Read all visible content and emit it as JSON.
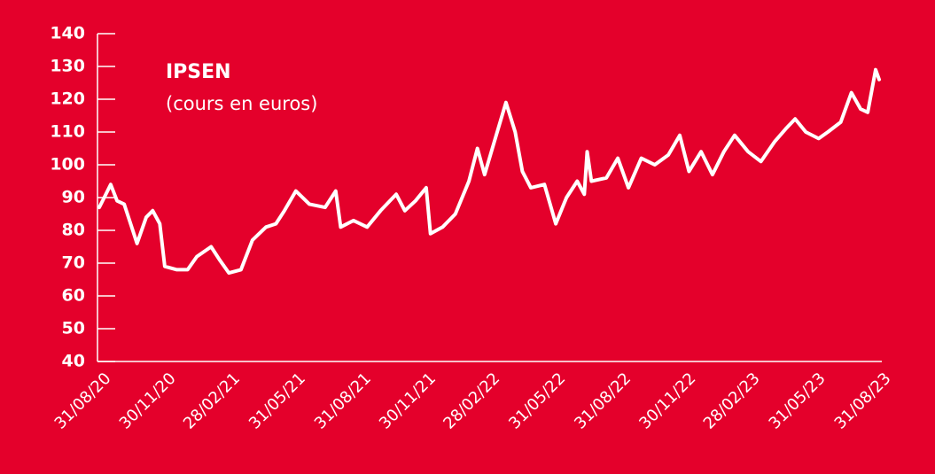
{
  "chart_data": {
    "type": "line",
    "title": "IPSEN",
    "subtitle": "(cours en euros)",
    "x": [
      "31/08/20",
      "07/09/20",
      "16/09/20",
      "25/09/20",
      "05/10/20",
      "17/10/20",
      "23/10/20",
      "05/11/20",
      "14/11/20",
      "24/11/20",
      "01/12/20",
      "18/12/20",
      "02/01/21",
      "15/01/21",
      "04/02/21",
      "16/02/21",
      "01/03/21",
      "18/03/21",
      "03/04/21",
      "22/04/21",
      "06/05/21",
      "18/05/21",
      "03/06/21",
      "22/06/21",
      "14/07/21",
      "29/07/21",
      "05/08/21",
      "23/08/21",
      "11/09/21",
      "30/09/21",
      "22/10/21",
      "03/11/21",
      "18/11/21",
      "03/12/21",
      "09/12/21",
      "26/12/21",
      "13/01/22",
      "01/02/22",
      "13/02/22",
      "23/02/22",
      "10/03/22",
      "25/03/22",
      "07/04/22",
      "17/04/22",
      "29/04/22",
      "18/05/22",
      "03/06/22",
      "18/06/22",
      "03/07/22",
      "13/07/22",
      "17/07/22",
      "23/07/22",
      "13/08/22",
      "29/08/22",
      "13/09/22",
      "01/10/22",
      "20/10/22",
      "08/11/22",
      "24/11/22",
      "07/12/22",
      "24/12/22",
      "09/01/23",
      "25/01/23",
      "09/02/23",
      "28/02/23",
      "18/03/23",
      "06/04/23",
      "22/04/23",
      "05/05/23",
      "20/05/23",
      "07/06/23",
      "20/06/23",
      "08/07/23",
      "23/07/23",
      "05/08/23",
      "15/08/23",
      "26/08/23",
      "31/08/23"
    ],
    "series": [
      {
        "name": "IPSEN",
        "color": "#ffffff",
        "values": [
          87,
          90,
          94,
          89,
          88,
          80,
          76,
          84,
          86,
          82,
          69,
          68,
          68,
          72,
          75,
          71,
          67,
          68,
          77,
          81,
          82,
          86,
          92,
          88,
          87,
          92,
          81,
          83,
          81,
          86,
          91,
          86,
          89,
          93,
          79,
          81,
          85,
          95,
          105,
          97,
          108,
          119,
          110,
          98,
          93,
          94,
          82,
          90,
          95,
          91,
          104,
          95,
          96,
          102,
          93,
          102,
          100,
          103,
          109,
          98,
          104,
          97,
          104,
          109,
          104,
          101,
          107,
          111,
          114,
          110,
          108,
          110,
          113,
          122,
          117,
          116,
          129,
          126
        ]
      }
    ],
    "xlim": [
      "31/08/20",
      "31/08/23"
    ],
    "xticks": [
      "31/08/20",
      "30/11/20",
      "28/02/21",
      "31/05/21",
      "31/08/21",
      "30/11/21",
      "28/02/22",
      "31/05/22",
      "31/08/22",
      "30/11/22",
      "28/02/23",
      "31/05/23",
      "31/08/23"
    ],
    "ylim": [
      40,
      140
    ],
    "yticks": [
      40,
      50,
      60,
      70,
      80,
      90,
      100,
      110,
      120,
      130,
      140
    ]
  }
}
